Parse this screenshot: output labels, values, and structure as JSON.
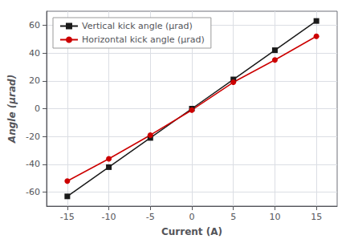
{
  "chart_data": {
    "type": "line",
    "xlabel": "Current (A)",
    "ylabel": "Angle (μrad)",
    "x": [
      -15,
      -10,
      -5,
      0,
      5,
      10,
      15
    ],
    "series": [
      {
        "name": "Vertical kick angle (μrad)",
        "color": "#1a1a1a",
        "marker": "square",
        "values": [
          -63,
          -42,
          -21,
          0,
          21,
          42,
          63
        ]
      },
      {
        "name": "Horizontal kick angle (μrad)",
        "color": "#cc0000",
        "marker": "circle",
        "values": [
          -52,
          -36,
          -19,
          -1,
          19,
          35,
          52
        ]
      }
    ],
    "xlim": [
      -17.5,
      17.5
    ],
    "ylim": [
      -70,
      70
    ],
    "xticks": [
      -15,
      -10,
      -5,
      0,
      5,
      10,
      15
    ],
    "yticks": [
      -60,
      -40,
      -20,
      0,
      20,
      40,
      60
    ],
    "grid": true,
    "legend": "upper left"
  }
}
